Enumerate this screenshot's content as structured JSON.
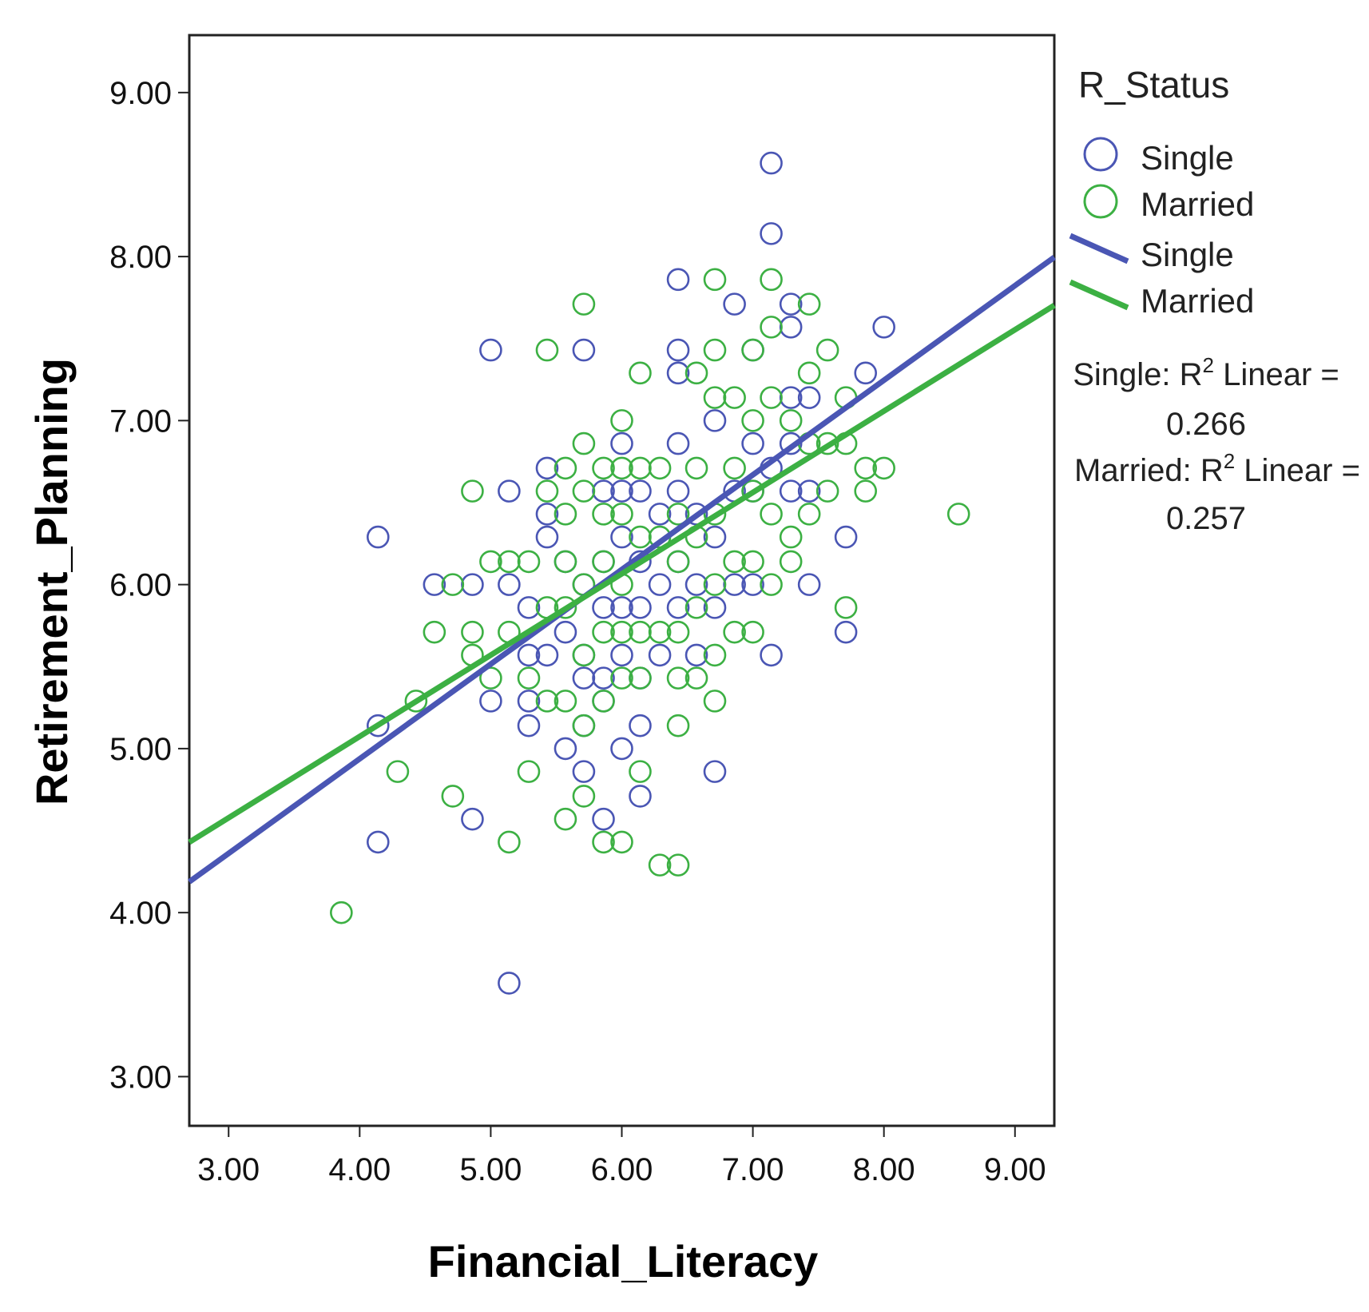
{
  "chart_data": {
    "type": "scatter",
    "xlabel": "Financial_Literacy",
    "ylabel": "Retirement_Planning",
    "xlim": [
      2.7,
      9.3
    ],
    "ylim": [
      2.7,
      9.35
    ],
    "xticks": [
      "3.00",
      "4.00",
      "5.00",
      "6.00",
      "7.00",
      "8.00",
      "9.00"
    ],
    "yticks": [
      "3.00",
      "4.00",
      "5.00",
      "6.00",
      "7.00",
      "8.00",
      "9.00"
    ],
    "legend": {
      "title": "R_Status",
      "placement": "right",
      "marker_entries": [
        "Single",
        "Married"
      ],
      "line_entries": [
        "Single",
        "Married"
      ]
    },
    "annotations": [
      {
        "line1_prefix": "Single: R",
        "sup": "2",
        "line1_suffix": " Linear =",
        "line2": "0.266"
      },
      {
        "line1_prefix": "Married: R",
        "sup": "2",
        "line1_suffix": " Linear =",
        "line2": "0.257"
      }
    ],
    "series": [
      {
        "name": "Single",
        "color": "#4a56b4",
        "fit": {
          "slope": 0.577,
          "intercept": 2.63,
          "r2": 0.266
        },
        "points": [
          [
            4.14,
            6.29
          ],
          [
            4.14,
            4.43
          ],
          [
            4.14,
            5.14
          ],
          [
            5.0,
            7.43
          ],
          [
            4.57,
            6.0
          ],
          [
            4.86,
            6.0
          ],
          [
            4.86,
            4.57
          ],
          [
            5.14,
            6.57
          ],
          [
            5.14,
            6.0
          ],
          [
            5.14,
            3.57
          ],
          [
            5.0,
            5.29
          ],
          [
            5.29,
            5.86
          ],
          [
            5.29,
            5.29
          ],
          [
            5.29,
            5.14
          ],
          [
            5.29,
            5.57
          ],
          [
            5.43,
            6.71
          ],
          [
            5.43,
            6.43
          ],
          [
            5.43,
            6.29
          ],
          [
            5.43,
            5.57
          ],
          [
            5.57,
            6.14
          ],
          [
            5.57,
            5.71
          ],
          [
            5.57,
            5.0
          ],
          [
            5.71,
            7.43
          ],
          [
            5.71,
            6.0
          ],
          [
            5.71,
            5.57
          ],
          [
            5.71,
            5.43
          ],
          [
            5.71,
            5.14
          ],
          [
            5.71,
            4.86
          ],
          [
            5.86,
            6.57
          ],
          [
            5.86,
            6.14
          ],
          [
            5.86,
            5.86
          ],
          [
            5.86,
            5.43
          ],
          [
            5.86,
            5.29
          ],
          [
            5.86,
            4.57
          ],
          [
            6.0,
            6.86
          ],
          [
            6.0,
            6.57
          ],
          [
            6.0,
            6.29
          ],
          [
            6.0,
            5.86
          ],
          [
            6.0,
            5.57
          ],
          [
            6.0,
            5.0
          ],
          [
            6.14,
            6.57
          ],
          [
            6.14,
            6.14
          ],
          [
            6.14,
            5.86
          ],
          [
            6.14,
            5.43
          ],
          [
            6.14,
            5.14
          ],
          [
            6.14,
            4.71
          ],
          [
            6.29,
            6.43
          ],
          [
            6.29,
            6.0
          ],
          [
            6.29,
            5.57
          ],
          [
            6.43,
            7.86
          ],
          [
            6.43,
            7.43
          ],
          [
            6.43,
            7.29
          ],
          [
            6.43,
            6.86
          ],
          [
            6.43,
            6.57
          ],
          [
            6.43,
            6.14
          ],
          [
            6.43,
            5.86
          ],
          [
            6.57,
            6.43
          ],
          [
            6.57,
            6.0
          ],
          [
            6.57,
            5.57
          ],
          [
            6.71,
            7.0
          ],
          [
            6.71,
            6.29
          ],
          [
            6.71,
            5.86
          ],
          [
            6.71,
            4.86
          ],
          [
            6.86,
            7.71
          ],
          [
            6.86,
            6.57
          ],
          [
            6.86,
            6.0
          ],
          [
            7.0,
            7.43
          ],
          [
            7.0,
            6.86
          ],
          [
            7.0,
            6.57
          ],
          [
            7.0,
            6.0
          ],
          [
            7.14,
            8.57
          ],
          [
            7.14,
            8.14
          ],
          [
            7.14,
            6.71
          ],
          [
            7.14,
            5.57
          ],
          [
            7.29,
            7.71
          ],
          [
            7.29,
            7.57
          ],
          [
            7.29,
            7.14
          ],
          [
            7.29,
            6.86
          ],
          [
            7.29,
            6.57
          ],
          [
            7.43,
            7.14
          ],
          [
            7.43,
            6.57
          ],
          [
            7.43,
            6.0
          ],
          [
            7.71,
            6.29
          ],
          [
            7.71,
            5.71
          ],
          [
            7.86,
            7.29
          ],
          [
            8.0,
            7.57
          ]
        ]
      },
      {
        "name": "Married",
        "color": "#3cb043",
        "fit": {
          "slope": 0.496,
          "intercept": 3.09,
          "r2": 0.257
        },
        "points": [
          [
            3.86,
            4.0
          ],
          [
            4.29,
            4.86
          ],
          [
            4.43,
            5.29
          ],
          [
            4.57,
            5.71
          ],
          [
            4.71,
            4.71
          ],
          [
            4.71,
            6.0
          ],
          [
            4.86,
            6.57
          ],
          [
            4.86,
            5.71
          ],
          [
            4.86,
            5.57
          ],
          [
            5.0,
            6.14
          ],
          [
            5.0,
            5.43
          ],
          [
            5.14,
            6.14
          ],
          [
            5.14,
            5.71
          ],
          [
            5.14,
            4.43
          ],
          [
            5.29,
            6.14
          ],
          [
            5.29,
            5.43
          ],
          [
            5.29,
            4.86
          ],
          [
            5.43,
            7.43
          ],
          [
            5.43,
            6.57
          ],
          [
            5.43,
            5.86
          ],
          [
            5.43,
            5.29
          ],
          [
            5.57,
            6.71
          ],
          [
            5.57,
            6.43
          ],
          [
            5.57,
            6.14
          ],
          [
            5.57,
            5.86
          ],
          [
            5.57,
            5.29
          ],
          [
            5.57,
            4.57
          ],
          [
            5.71,
            7.71
          ],
          [
            5.71,
            6.86
          ],
          [
            5.71,
            6.57
          ],
          [
            5.71,
            6.0
          ],
          [
            5.71,
            5.57
          ],
          [
            5.71,
            5.14
          ],
          [
            5.71,
            4.71
          ],
          [
            5.86,
            6.71
          ],
          [
            5.86,
            6.43
          ],
          [
            5.86,
            6.14
          ],
          [
            5.86,
            5.71
          ],
          [
            5.86,
            5.29
          ],
          [
            5.86,
            4.43
          ],
          [
            6.0,
            7.0
          ],
          [
            6.0,
            6.71
          ],
          [
            6.0,
            6.43
          ],
          [
            6.0,
            6.0
          ],
          [
            6.0,
            5.71
          ],
          [
            6.0,
            5.43
          ],
          [
            6.0,
            4.43
          ],
          [
            6.14,
            7.29
          ],
          [
            6.14,
            6.71
          ],
          [
            6.14,
            6.29
          ],
          [
            6.14,
            5.71
          ],
          [
            6.14,
            5.43
          ],
          [
            6.14,
            4.86
          ],
          [
            6.29,
            6.71
          ],
          [
            6.29,
            6.29
          ],
          [
            6.29,
            5.71
          ],
          [
            6.29,
            4.29
          ],
          [
            6.43,
            6.43
          ],
          [
            6.43,
            6.14
          ],
          [
            6.43,
            5.71
          ],
          [
            6.43,
            5.43
          ],
          [
            6.43,
            5.14
          ],
          [
            6.43,
            4.29
          ],
          [
            6.57,
            7.29
          ],
          [
            6.57,
            6.71
          ],
          [
            6.57,
            6.29
          ],
          [
            6.57,
            5.86
          ],
          [
            6.57,
            5.43
          ],
          [
            6.71,
            7.86
          ],
          [
            6.71,
            7.43
          ],
          [
            6.71,
            7.14
          ],
          [
            6.71,
            6.43
          ],
          [
            6.71,
            6.0
          ],
          [
            6.71,
            5.57
          ],
          [
            6.71,
            5.29
          ],
          [
            6.86,
            7.14
          ],
          [
            6.86,
            6.71
          ],
          [
            6.86,
            6.14
          ],
          [
            6.86,
            5.71
          ],
          [
            7.0,
            7.43
          ],
          [
            7.0,
            7.0
          ],
          [
            7.0,
            6.57
          ],
          [
            7.0,
            6.14
          ],
          [
            7.0,
            5.71
          ],
          [
            7.14,
            7.86
          ],
          [
            7.14,
            7.57
          ],
          [
            7.14,
            7.14
          ],
          [
            7.14,
            6.43
          ],
          [
            7.14,
            6.0
          ],
          [
            7.29,
            7.0
          ],
          [
            7.29,
            6.29
          ],
          [
            7.29,
            6.14
          ],
          [
            7.43,
            7.71
          ],
          [
            7.43,
            7.29
          ],
          [
            7.43,
            6.86
          ],
          [
            7.43,
            6.43
          ],
          [
            7.57,
            7.43
          ],
          [
            7.57,
            6.86
          ],
          [
            7.57,
            6.57
          ],
          [
            7.71,
            7.14
          ],
          [
            7.71,
            6.86
          ],
          [
            7.71,
            5.86
          ],
          [
            7.86,
            6.71
          ],
          [
            7.86,
            6.57
          ],
          [
            8.0,
            6.71
          ],
          [
            8.57,
            6.43
          ]
        ]
      }
    ]
  }
}
